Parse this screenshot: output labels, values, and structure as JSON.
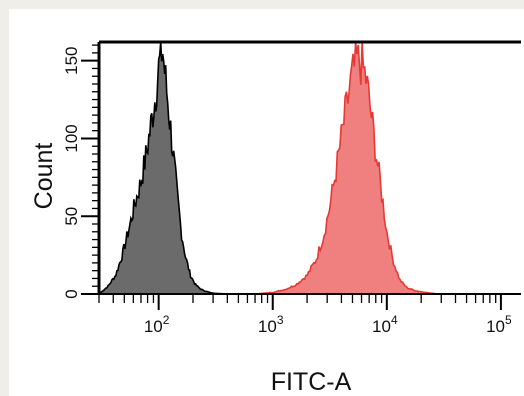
{
  "chart_data": {
    "type": "area",
    "title": "",
    "xlabel": "FITC-A",
    "ylabel": "Count",
    "x_scale": "log",
    "xlim": [
      30,
      150000
    ],
    "ylim": [
      0,
      162
    ],
    "x_ticks": [
      {
        "value": 100,
        "base": "10",
        "exp": "2"
      },
      {
        "value": 1000,
        "base": "10",
        "exp": "3"
      },
      {
        "value": 10000,
        "base": "10",
        "exp": "4"
      },
      {
        "value": 100000,
        "base": "10",
        "exp": "5"
      }
    ],
    "y_ticks": [
      {
        "value": 0,
        "label": "0"
      },
      {
        "value": 50,
        "label": "50"
      },
      {
        "value": 100,
        "label": "100"
      },
      {
        "value": 150,
        "label": "150"
      }
    ],
    "grid": false,
    "legend": "none",
    "series": [
      {
        "fill": "#6b6b6b",
        "stroke": "#000000",
        "x": [
          30,
          36,
          42,
          48,
          55,
          62,
          70,
          78,
          86,
          94,
          100,
          108,
          116,
          125,
          135,
          146,
          158,
          172,
          190,
          210,
          235,
          265,
          300,
          350,
          420,
          500
        ],
        "y": [
          0,
          5,
          12,
          25,
          42,
          58,
          72,
          90,
          110,
          128,
          145,
          158,
          135,
          112,
          88,
          62,
          40,
          24,
          12,
          6,
          3,
          1.5,
          0.5,
          0.2,
          0,
          0
        ]
      },
      {
        "fill": "#f08080",
        "stroke": "#e53935",
        "x": [
          700,
          1000,
          1300,
          1600,
          2000,
          2400,
          2800,
          3200,
          3700,
          4200,
          4800,
          5400,
          6000,
          6600,
          7200,
          8000,
          9000,
          10000,
          11500,
          13000,
          15000,
          18000,
          22000,
          28000
        ],
        "y": [
          0,
          1,
          3,
          6,
          12,
          22,
          38,
          58,
          85,
          110,
          135,
          150,
          148,
          138,
          118,
          92,
          65,
          40,
          20,
          9,
          4,
          2,
          1,
          0
        ]
      }
    ]
  }
}
